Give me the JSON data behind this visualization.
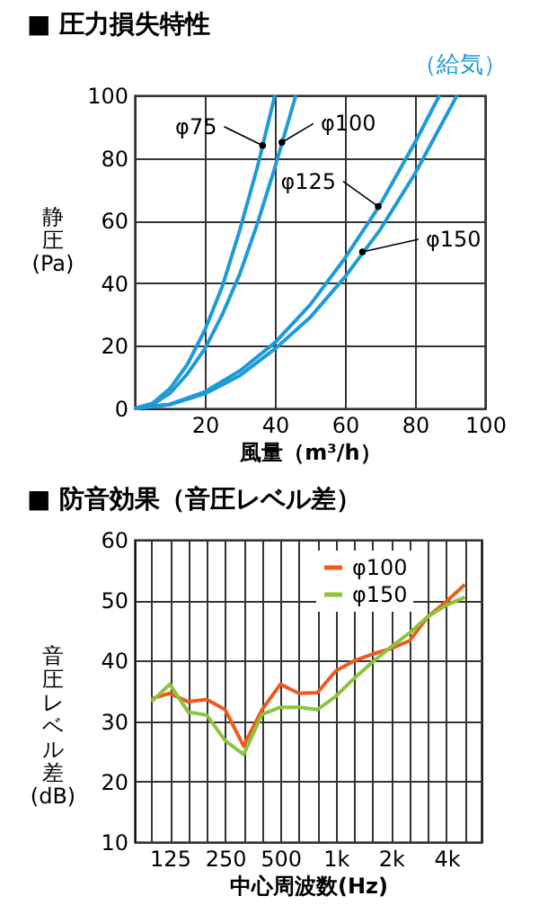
{
  "chart_data": [
    {
      "type": "line",
      "title": "■ 圧力損失特性",
      "xlabel": "風量（m³/h）",
      "ylabel": "静圧(Pa)",
      "xlim": [
        0,
        100
      ],
      "ylim": [
        0,
        100
      ],
      "xticks": [
        {
          "value": 0,
          "label": null
        },
        20,
        40,
        60,
        80,
        100
      ],
      "yticks": [
        0,
        20,
        40,
        60,
        80,
        100
      ],
      "grid": true,
      "series": [
        {
          "color": "#1e9bd7",
          "x": [
            0,
            5,
            10,
            15,
            20,
            25,
            30,
            35,
            40
          ],
          "values": [
            0,
            1.6,
            6.3,
            14,
            25,
            39,
            57,
            77,
            100
          ]
        },
        {
          "color": "#1e9bd7",
          "x": [
            0,
            5,
            10,
            15,
            20,
            25,
            30,
            35,
            40,
            46
          ],
          "values": [
            0,
            1.2,
            4.8,
            11,
            19,
            30,
            43,
            59,
            77,
            100
          ]
        },
        {
          "color": "#1e9bd7",
          "x": [
            0,
            10,
            20,
            30,
            40,
            50,
            60,
            70,
            80,
            87
          ],
          "values": [
            0,
            1.3,
            5.3,
            12,
            21,
            33,
            48,
            65,
            85,
            100
          ]
        },
        {
          "color": "#1e9bd7",
          "x": [
            0,
            10,
            20,
            30,
            40,
            50,
            60,
            70,
            80,
            92
          ],
          "values": [
            0,
            1.2,
            4.7,
            10.5,
            19,
            29,
            42,
            57,
            75,
            100
          ]
        }
      ],
      "annotations": [
        {
          "text": "φ75",
          "x": 36.5,
          "y": 84
        },
        {
          "text": "φ100",
          "x": 42,
          "y": 85
        },
        {
          "text": "φ125",
          "x": 69.5,
          "y": 64.5
        },
        {
          "text": "φ150",
          "x": 65,
          "y": 50
        },
        "（給気）"
      ]
    },
    {
      "type": "line",
      "title": "■ 防音効果（音圧レベル差）",
      "xlabel": "中心周波数(Hz)",
      "ylabel": "音圧レベル差(dB)",
      "ylim": [
        10,
        60
      ],
      "yticks": [
        10,
        20,
        30,
        40,
        50,
        60
      ],
      "grid": true,
      "legend": "top right",
      "categories": [
        null,
        "125",
        null,
        null,
        "250",
        null,
        null,
        "500",
        null,
        null,
        "1k",
        null,
        null,
        "2k",
        null,
        null,
        "4k",
        null
      ],
      "series": [
        {
          "name": "φ100",
          "color": "#f05a1e",
          "values": [
            33.7,
            34.6,
            33.2,
            33.6,
            31.9,
            25.9,
            31.9,
            36.1,
            34.6,
            34.7,
            38.3,
            40,
            41.1,
            42,
            43.3,
            47.3,
            49.8,
            52.6
          ]
        },
        {
          "name": "φ150",
          "color": "#8cc43c",
          "values": [
            33.2,
            36.1,
            31.5,
            31,
            26.8,
            24.5,
            31.1,
            32.3,
            32.3,
            31.9,
            34.1,
            37.1,
            39.8,
            42.3,
            44.6,
            47.3,
            49.2,
            50.5
          ]
        }
      ]
    }
  ]
}
